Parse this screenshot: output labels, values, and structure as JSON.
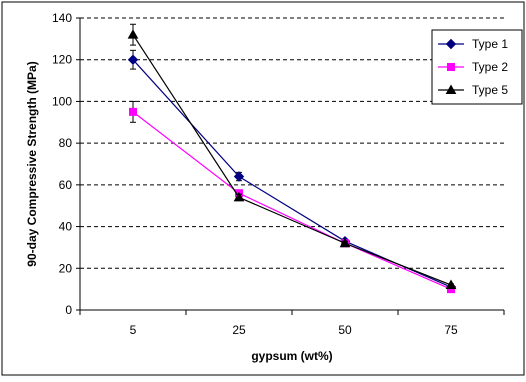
{
  "chart_data": {
    "type": "line",
    "title": "",
    "xlabel": "gypsum (wt%)",
    "ylabel": "90-day Compressive Strength (MPa)",
    "categories": [
      "5",
      "25",
      "50",
      "75"
    ],
    "ylim": [
      0,
      140
    ],
    "yticks": [
      0,
      20,
      40,
      60,
      80,
      100,
      120,
      140
    ],
    "grid": "horizontal dashed",
    "legend_position": "top-right",
    "series": [
      {
        "name": "Type 1",
        "color": "#000080",
        "marker": "diamond",
        "values": [
          120,
          64,
          33,
          11
        ],
        "errors": [
          4.5,
          2,
          1,
          0.5
        ]
      },
      {
        "name": "Type 2",
        "color": "#ff00ff",
        "marker": "square",
        "values": [
          95,
          56,
          32,
          10
        ],
        "errors": [
          5,
          1.5,
          1,
          0.5
        ]
      },
      {
        "name": "Type 5",
        "color": "#000000",
        "marker": "triangle",
        "values": [
          132,
          54,
          32,
          12
        ],
        "errors": [
          5,
          1.5,
          1,
          0.5
        ]
      }
    ]
  }
}
